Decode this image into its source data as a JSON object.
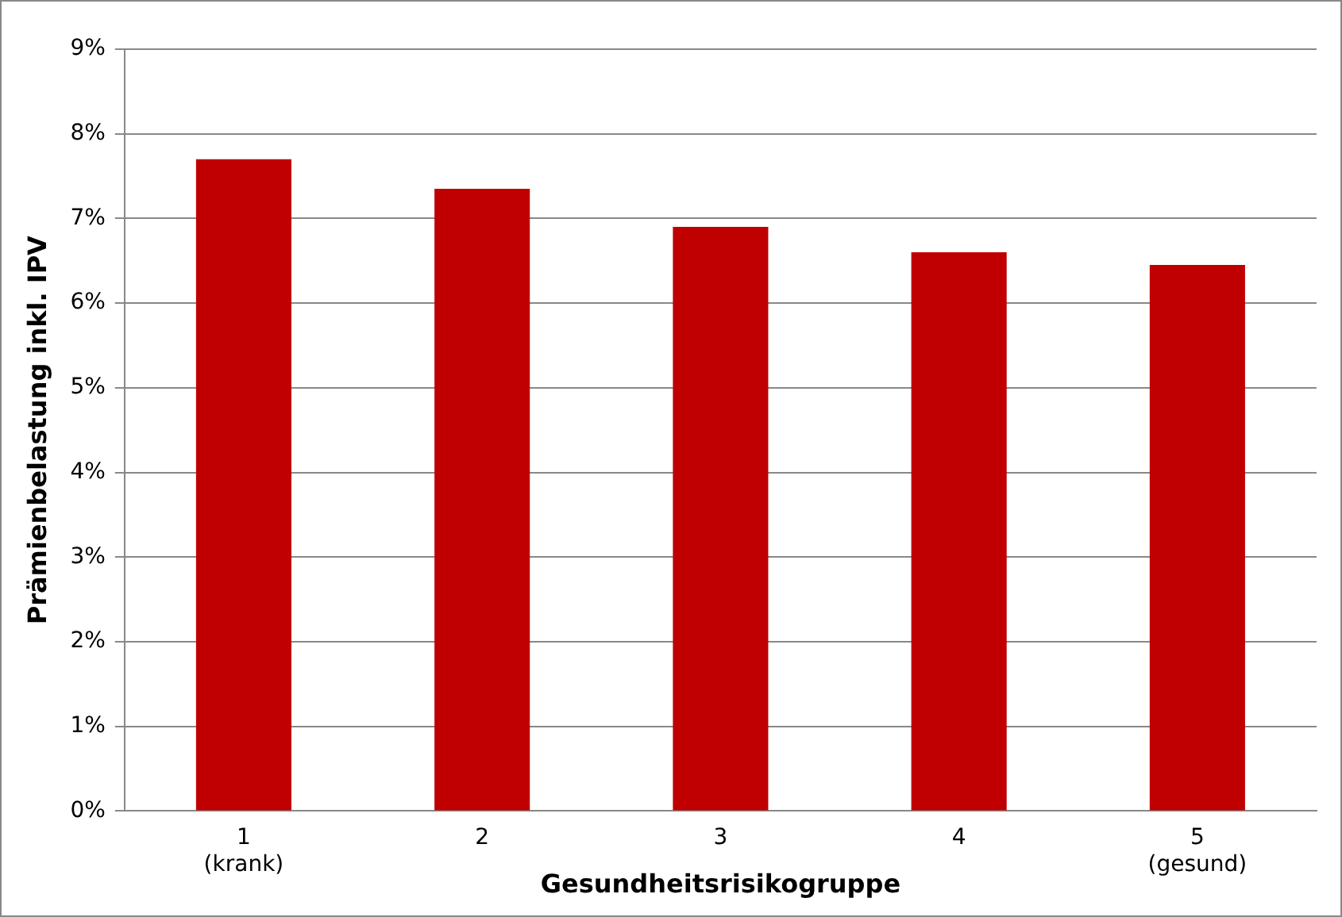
{
  "chart_data": {
    "type": "bar",
    "xlabel": "Gesundheitsrisikogruppe",
    "ylabel": "Prämienbelastung inkl. IPV",
    "categories": [
      "1\n(krank)",
      "2",
      "3",
      "4",
      "5\n(gesund)"
    ],
    "values": [
      7.7,
      7.35,
      6.9,
      6.6,
      6.45
    ],
    "color": "#c00000",
    "ylim": [
      0,
      9
    ],
    "yticks": [
      {
        "value": 0,
        "label": "0%"
      },
      {
        "value": 1,
        "label": "1%"
      },
      {
        "value": 2,
        "label": "2%"
      },
      {
        "value": 3,
        "label": "3%"
      },
      {
        "value": 4,
        "label": "4%"
      },
      {
        "value": 5,
        "label": "5%"
      },
      {
        "value": 6,
        "label": "6%"
      },
      {
        "value": 7,
        "label": "7%"
      },
      {
        "value": 8,
        "label": "8%"
      },
      {
        "value": 9,
        "label": "9%"
      }
    ],
    "grid": "y",
    "legend": false
  }
}
